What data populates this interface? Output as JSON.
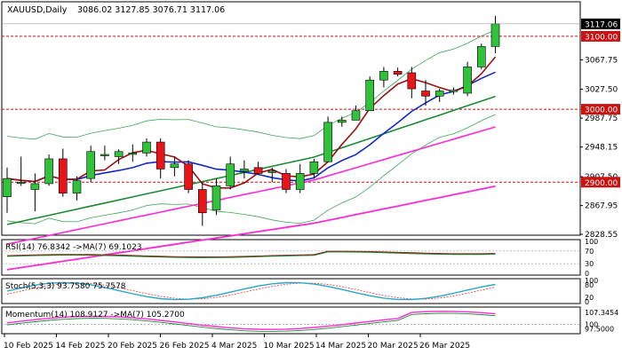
{
  "header": {
    "symbol": "XAUUSD,Daily",
    "ohlc": "3086.02 3127.85 3076.71 3117.06"
  },
  "price_labels": {
    "last": "3117.06",
    "line_3100": "3100.00",
    "line_3000": "3000.00",
    "line_2900": "2900.00"
  },
  "colors": {
    "bull": "#2fc23a",
    "bear": "#e8141a",
    "ma_fast": "#9b1111",
    "ma_mid": "#1428c8",
    "ma_green": "#1a8a32",
    "ma_pink": "#ff2ad4",
    "bollinger": "#3fa55a",
    "level_line": "#cc1111",
    "stoch_signal": "#e34b4b",
    "stoch_main": "#2aa6c6"
  },
  "chart_data": [
    {
      "type": "candlestick",
      "title": "XAUUSD,Daily",
      "ylim": [
        2828.55,
        3127.85
      ],
      "y_ticks": [
        "3067.75",
        "3027.50",
        "2987.75",
        "2948.15",
        "2907.50",
        "2867.95",
        "2828.55"
      ],
      "x_ticks": [
        "10 Feb 2025",
        "14 Feb 2025",
        "20 Feb 2025",
        "26 Feb 2025",
        "4 Mar 2025",
        "10 Mar 2025",
        "14 Mar 2025",
        "20 Mar 2025",
        "26 Mar 2025"
      ],
      "horizontal_levels": [
        3100,
        3000,
        2900
      ],
      "candles": [
        {
          "o": 2880,
          "h": 2920,
          "l": 2858,
          "c": 2905
        },
        {
          "o": 2900,
          "h": 2935,
          "l": 2895,
          "c": 2900
        },
        {
          "o": 2890,
          "h": 2912,
          "l": 2860,
          "c": 2898
        },
        {
          "o": 2898,
          "h": 2938,
          "l": 2895,
          "c": 2932
        },
        {
          "o": 2932,
          "h": 2946,
          "l": 2880,
          "c": 2885
        },
        {
          "o": 2885,
          "h": 2908,
          "l": 2875,
          "c": 2902
        },
        {
          "o": 2905,
          "h": 2950,
          "l": 2900,
          "c": 2942
        },
        {
          "o": 2938,
          "h": 2950,
          "l": 2930,
          "c": 2938
        },
        {
          "o": 2935,
          "h": 2945,
          "l": 2925,
          "c": 2942
        },
        {
          "o": 2940,
          "h": 2952,
          "l": 2928,
          "c": 2940
        },
        {
          "o": 2940,
          "h": 2960,
          "l": 2935,
          "c": 2955
        },
        {
          "o": 2955,
          "h": 2960,
          "l": 2905,
          "c": 2918
        },
        {
          "o": 2920,
          "h": 2935,
          "l": 2908,
          "c": 2925
        },
        {
          "o": 2925,
          "h": 2930,
          "l": 2885,
          "c": 2890
        },
        {
          "o": 2890,
          "h": 2900,
          "l": 2840,
          "c": 2858
        },
        {
          "o": 2862,
          "h": 2905,
          "l": 2855,
          "c": 2895
        },
        {
          "o": 2895,
          "h": 2935,
          "l": 2890,
          "c": 2925
        },
        {
          "o": 2915,
          "h": 2930,
          "l": 2905,
          "c": 2918
        },
        {
          "o": 2920,
          "h": 2928,
          "l": 2910,
          "c": 2912
        },
        {
          "o": 2915,
          "h": 2920,
          "l": 2900,
          "c": 2915
        },
        {
          "o": 2912,
          "h": 2918,
          "l": 2885,
          "c": 2890
        },
        {
          "o": 2890,
          "h": 2925,
          "l": 2885,
          "c": 2912
        },
        {
          "o": 2912,
          "h": 2932,
          "l": 2905,
          "c": 2928
        },
        {
          "o": 2928,
          "h": 2990,
          "l": 2928,
          "c": 2982
        },
        {
          "o": 2982,
          "h": 2990,
          "l": 2976,
          "c": 2985
        },
        {
          "o": 2985,
          "h": 3005,
          "l": 2985,
          "c": 2998
        },
        {
          "o": 2998,
          "h": 3045,
          "l": 2998,
          "c": 3040
        },
        {
          "o": 3040,
          "h": 3058,
          "l": 3030,
          "c": 3052
        },
        {
          "o": 3052,
          "h": 3057,
          "l": 3045,
          "c": 3048
        },
        {
          "o": 3050,
          "h": 3058,
          "l": 3015,
          "c": 3028
        },
        {
          "o": 3025,
          "h": 3040,
          "l": 3005,
          "c": 3018
        },
        {
          "o": 3018,
          "h": 3028,
          "l": 3010,
          "c": 3025
        },
        {
          "o": 3025,
          "h": 3030,
          "l": 3020,
          "c": 3026
        },
        {
          "o": 3022,
          "h": 3065,
          "l": 3018,
          "c": 3058
        },
        {
          "o": 3058,
          "h": 3090,
          "l": 3055,
          "c": 3086
        },
        {
          "o": 3086.02,
          "h": 3127.85,
          "l": 3076.71,
          "c": 3117.06
        }
      ]
    },
    {
      "type": "line",
      "title": "RSI(14) 76.8342 ->MA(7) 69.1023",
      "y_ticks": [
        "100",
        "70",
        "30",
        "0"
      ]
    },
    {
      "type": "line",
      "title": "Stoch(5,3,3) 93.7580 75.7578",
      "y_ticks": [
        "100",
        "80",
        "20",
        "0"
      ]
    },
    {
      "type": "line",
      "title": "Momentum(14) 108.9127 ->MA(7) 105.2700",
      "y_ticks": [
        "107.3454",
        "100",
        "97.5000"
      ]
    }
  ]
}
